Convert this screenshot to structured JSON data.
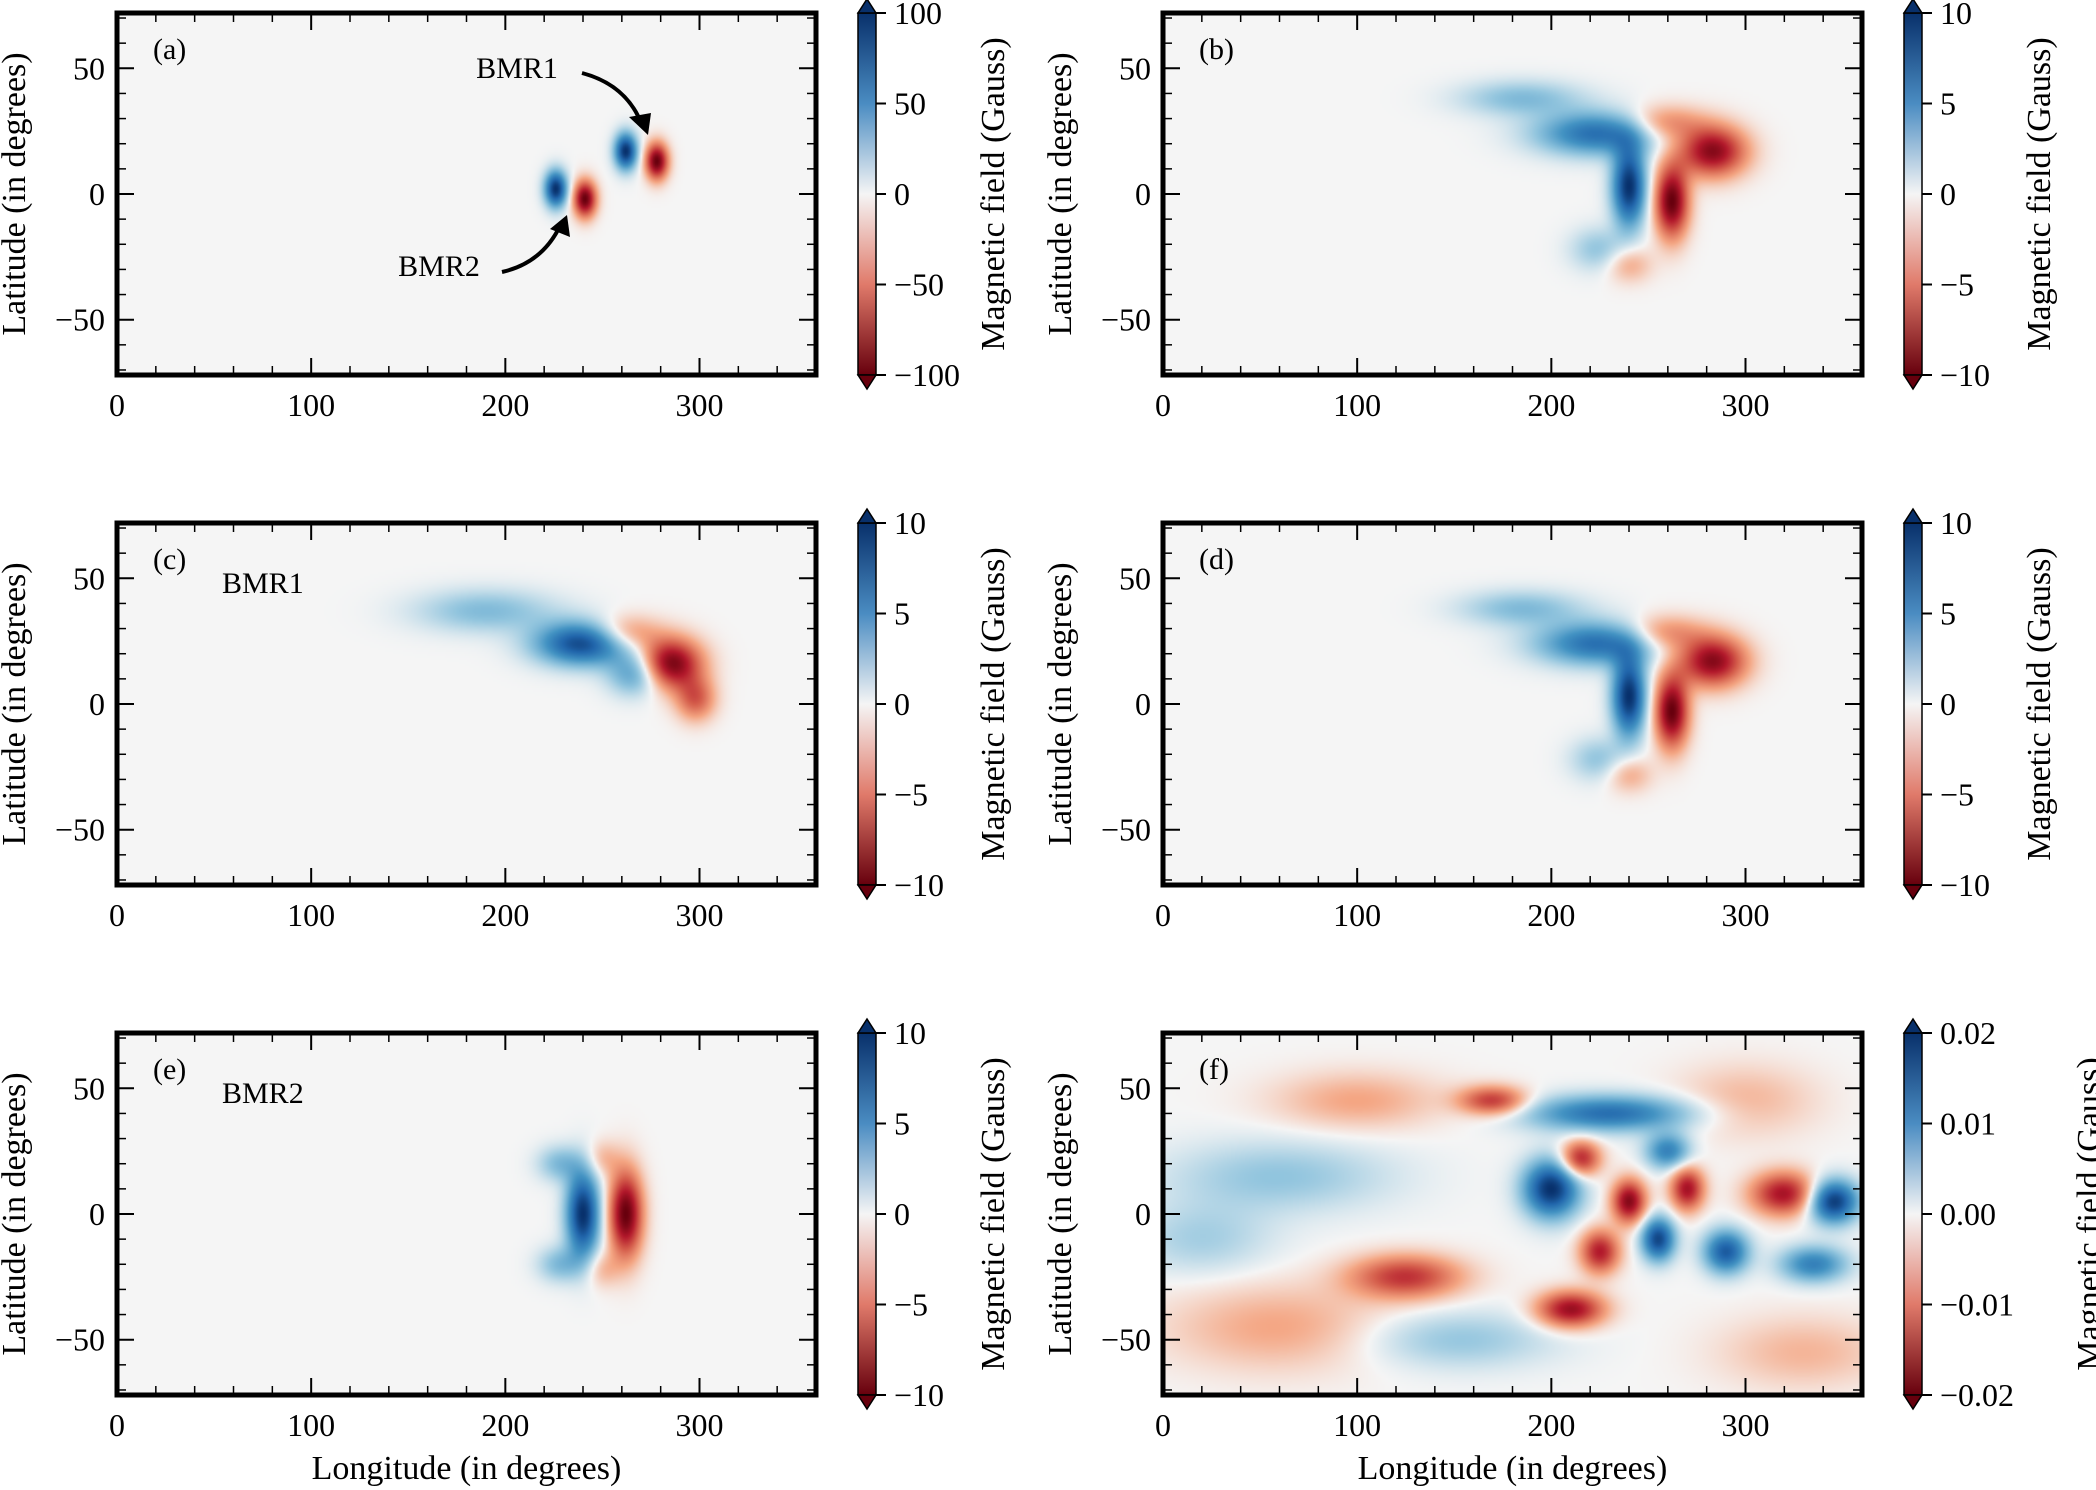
{
  "figure": {
    "xlabel": "Longitude (in degrees)",
    "ylabel": "Latitude (in degrees)",
    "colorbar_label": "Magnetic field (Gauss)",
    "x_ticks": [
      "0",
      "100",
      "200",
      "300"
    ],
    "y_ticks": [
      "50",
      "0",
      "−50"
    ]
  },
  "colors": {
    "positive": "#08306b",
    "positive_mid": "#4a8cc2",
    "neutral": "#f5f5f5",
    "negative_mid": "#e07a6a",
    "negative": "#67000d",
    "frame": "#000000"
  },
  "chart_data": [
    {
      "type": "heatmap",
      "panel": "(a)",
      "annotations": [
        "BMR1",
        "BMR2"
      ],
      "xlim": [
        0,
        360
      ],
      "ylim": [
        -72,
        72
      ],
      "x_ticks": [
        0,
        100,
        200,
        300
      ],
      "y_ticks": [
        50,
        0,
        -50
      ],
      "colorbar": {
        "min": -100,
        "max": 100,
        "ticks": [
          100,
          50,
          0,
          -50,
          -100
        ],
        "tick_labels": [
          "100",
          "50",
          "0",
          "−50",
          "−100"
        ]
      },
      "blobs": [
        {
          "lon": 262,
          "lat": 17,
          "sigma_lon": 4,
          "sigma_lat": 5,
          "value": 100
        },
        {
          "lon": 278,
          "lat": 13,
          "sigma_lon": 4,
          "sigma_lat": 5,
          "value": -100
        },
        {
          "lon": 226,
          "lat": 2,
          "sigma_lon": 4,
          "sigma_lat": 5,
          "value": 100
        },
        {
          "lon": 241,
          "lat": -2,
          "sigma_lon": 4,
          "sigma_lat": 5,
          "value": -100
        }
      ]
    },
    {
      "type": "heatmap",
      "panel": "(b)",
      "xlim": [
        0,
        360
      ],
      "ylim": [
        -72,
        72
      ],
      "x_ticks": [
        0,
        100,
        200,
        300
      ],
      "y_ticks": [
        50,
        0,
        -50
      ],
      "colorbar": {
        "min": -10,
        "max": 10,
        "ticks": [
          10,
          5,
          0,
          -5,
          -10
        ],
        "tick_labels": [
          "10",
          "5",
          "0",
          "−5",
          "−10"
        ]
      },
      "blobs": [
        {
          "lon": 240,
          "lat": 3,
          "sigma_lon": 6,
          "sigma_lat": 11,
          "value": 10
        },
        {
          "lon": 262,
          "lat": -3,
          "sigma_lon": 6,
          "sigma_lat": 10,
          "value": -10
        },
        {
          "lon": 224,
          "lat": 24,
          "sigma_lon": 22,
          "sigma_lat": 6,
          "value": 7
        },
        {
          "lon": 185,
          "lat": 38,
          "sigma_lon": 22,
          "sigma_lat": 5,
          "value": 3
        },
        {
          "lon": 224,
          "lat": -22,
          "sigma_lon": 10,
          "sigma_lat": 6,
          "value": 2.5
        },
        {
          "lon": 283,
          "lat": 17,
          "sigma_lon": 12,
          "sigma_lat": 7,
          "value": -9
        },
        {
          "lon": 258,
          "lat": 28,
          "sigma_lon": 14,
          "sigma_lat": 5,
          "value": -4
        },
        {
          "lon": 240,
          "lat": -28,
          "sigma_lon": 8,
          "sigma_lat": 5,
          "value": -2.5
        }
      ]
    },
    {
      "type": "heatmap",
      "panel": "(c)",
      "annotations": [
        "BMR1"
      ],
      "xlim": [
        0,
        360
      ],
      "ylim": [
        -72,
        72
      ],
      "x_ticks": [
        0,
        100,
        200,
        300
      ],
      "y_ticks": [
        50,
        0,
        -50
      ],
      "colorbar": {
        "min": -10,
        "max": 10,
        "ticks": [
          10,
          5,
          0,
          -5,
          -10
        ],
        "tick_labels": [
          "10",
          "5",
          "0",
          "−5",
          "−10"
        ]
      },
      "blobs": [
        {
          "lon": 240,
          "lat": 24,
          "sigma_lon": 17,
          "sigma_lat": 6,
          "value": 9
        },
        {
          "lon": 268,
          "lat": 12,
          "sigma_lon": 10,
          "sigma_lat": 6,
          "value": 5
        },
        {
          "lon": 190,
          "lat": 37,
          "sigma_lon": 25,
          "sigma_lat": 6,
          "value": 3
        },
        {
          "lon": 285,
          "lat": 16,
          "sigma_lon": 11,
          "sigma_lat": 7,
          "value": -10
        },
        {
          "lon": 262,
          "lat": 28,
          "sigma_lon": 12,
          "sigma_lat": 5,
          "value": -4
        },
        {
          "lon": 298,
          "lat": 2,
          "sigma_lon": 7,
          "sigma_lat": 6,
          "value": -5
        }
      ]
    },
    {
      "type": "heatmap",
      "panel": "(d)",
      "xlim": [
        0,
        360
      ],
      "ylim": [
        -72,
        72
      ],
      "x_ticks": [
        0,
        100,
        200,
        300
      ],
      "y_ticks": [
        50,
        0,
        -50
      ],
      "colorbar": {
        "min": -10,
        "max": 10,
        "ticks": [
          10,
          5,
          0,
          -5,
          -10
        ],
        "tick_labels": [
          "10",
          "5",
          "0",
          "−5",
          "−10"
        ]
      },
      "blobs": [
        {
          "lon": 240,
          "lat": 3,
          "sigma_lon": 6,
          "sigma_lat": 11,
          "value": 10
        },
        {
          "lon": 262,
          "lat": -3,
          "sigma_lon": 6,
          "sigma_lat": 10,
          "value": -10
        },
        {
          "lon": 224,
          "lat": 24,
          "sigma_lon": 22,
          "sigma_lat": 6,
          "value": 7
        },
        {
          "lon": 185,
          "lat": 38,
          "sigma_lon": 22,
          "sigma_lat": 5,
          "value": 3
        },
        {
          "lon": 224,
          "lat": -22,
          "sigma_lon": 10,
          "sigma_lat": 6,
          "value": 2.5
        },
        {
          "lon": 283,
          "lat": 17,
          "sigma_lon": 12,
          "sigma_lat": 7,
          "value": -9
        },
        {
          "lon": 258,
          "lat": 28,
          "sigma_lon": 14,
          "sigma_lat": 5,
          "value": -4
        },
        {
          "lon": 240,
          "lat": -28,
          "sigma_lon": 8,
          "sigma_lat": 5,
          "value": -2.5
        }
      ]
    },
    {
      "type": "heatmap",
      "panel": "(e)",
      "annotations": [
        "BMR2"
      ],
      "xlim": [
        0,
        360
      ],
      "ylim": [
        -72,
        72
      ],
      "x_ticks": [
        0,
        100,
        200,
        300
      ],
      "y_ticks": [
        50,
        0,
        -50
      ],
      "colorbar": {
        "min": -10,
        "max": 10,
        "ticks": [
          10,
          5,
          0,
          -5,
          -10
        ],
        "tick_labels": [
          "10",
          "5",
          "0",
          "−5",
          "−10"
        ]
      },
      "blobs": [
        {
          "lon": 240,
          "lat": 0,
          "sigma_lon": 6,
          "sigma_lat": 12,
          "value": 10
        },
        {
          "lon": 262,
          "lat": 0,
          "sigma_lon": 6,
          "sigma_lat": 12,
          "value": -10
        },
        {
          "lon": 228,
          "lat": 20,
          "sigma_lon": 8,
          "sigma_lat": 5,
          "value": 3
        },
        {
          "lon": 228,
          "lat": -20,
          "sigma_lon": 8,
          "sigma_lat": 5,
          "value": 3
        },
        {
          "lon": 250,
          "lat": 22,
          "sigma_lon": 6,
          "sigma_lat": 5,
          "value": -2
        },
        {
          "lon": 250,
          "lat": -22,
          "sigma_lon": 6,
          "sigma_lat": 5,
          "value": -2
        }
      ]
    },
    {
      "type": "heatmap",
      "panel": "(f)",
      "xlim": [
        0,
        360
      ],
      "ylim": [
        -72,
        72
      ],
      "x_ticks": [
        0,
        100,
        200,
        300
      ],
      "y_ticks": [
        50,
        0,
        -50
      ],
      "colorbar": {
        "min": -0.02,
        "max": 0.02,
        "ticks": [
          0.02,
          0.01,
          0.0,
          -0.01,
          -0.02
        ],
        "tick_labels": [
          "0.02",
          "0.01",
          "0.00",
          "−0.01",
          "−0.02"
        ]
      },
      "blobs": [
        {
          "lon": 200,
          "lat": 10,
          "sigma_lon": 10,
          "sigma_lat": 8,
          "value": 0.02
        },
        {
          "lon": 320,
          "lat": 8,
          "sigma_lon": 12,
          "sigma_lat": 6,
          "value": -0.016
        },
        {
          "lon": 345,
          "lat": 5,
          "sigma_lon": 9,
          "sigma_lat": 6,
          "value": 0.02
        },
        {
          "lon": 125,
          "lat": -25,
          "sigma_lon": 20,
          "sigma_lat": 6,
          "value": -0.013
        },
        {
          "lon": 230,
          "lat": 40,
          "sigma_lon": 30,
          "sigma_lat": 5,
          "value": 0.014
        },
        {
          "lon": 170,
          "lat": 45,
          "sigma_lon": 12,
          "sigma_lat": 4,
          "value": -0.013
        },
        {
          "lon": 210,
          "lat": -38,
          "sigma_lon": 12,
          "sigma_lat": 5,
          "value": -0.017
        },
        {
          "lon": 240,
          "lat": 5,
          "sigma_lon": 6,
          "sigma_lat": 6,
          "value": -0.018
        },
        {
          "lon": 255,
          "lat": -10,
          "sigma_lon": 6,
          "sigma_lat": 6,
          "value": 0.018
        },
        {
          "lon": 270,
          "lat": 10,
          "sigma_lon": 6,
          "sigma_lat": 6,
          "value": -0.016
        },
        {
          "lon": 290,
          "lat": -15,
          "sigma_lon": 8,
          "sigma_lat": 6,
          "value": 0.016
        },
        {
          "lon": 225,
          "lat": -15,
          "sigma_lon": 7,
          "sigma_lat": 6,
          "value": -0.015
        },
        {
          "lon": 260,
          "lat": 25,
          "sigma_lon": 8,
          "sigma_lat": 5,
          "value": 0.012
        },
        {
          "lon": 215,
          "lat": 22,
          "sigma_lon": 7,
          "sigma_lat": 5,
          "value": -0.015
        },
        {
          "lon": 335,
          "lat": -20,
          "sigma_lon": 12,
          "sigma_lat": 5,
          "value": 0.012
        },
        {
          "lon": 60,
          "lat": 15,
          "sigma_lon": 40,
          "sigma_lat": 10,
          "value": 0.005
        },
        {
          "lon": 100,
          "lat": 45,
          "sigma_lon": 30,
          "sigma_lat": 8,
          "value": -0.005
        },
        {
          "lon": 60,
          "lat": -45,
          "sigma_lon": 40,
          "sigma_lat": 12,
          "value": -0.005
        },
        {
          "lon": 150,
          "lat": -50,
          "sigma_lon": 35,
          "sigma_lat": 8,
          "value": 0.005
        },
        {
          "lon": 300,
          "lat": 45,
          "sigma_lon": 25,
          "sigma_lat": 10,
          "value": -0.004
        },
        {
          "lon": 20,
          "lat": -10,
          "sigma_lon": 25,
          "sigma_lat": 10,
          "value": 0.004
        },
        {
          "lon": 330,
          "lat": -55,
          "sigma_lon": 30,
          "sigma_lat": 10,
          "value": -0.004
        }
      ]
    }
  ]
}
